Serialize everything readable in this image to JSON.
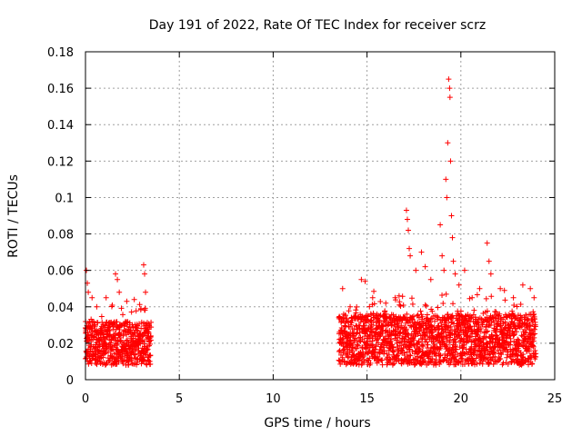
{
  "chart_data": {
    "type": "scatter",
    "title": "Day 191 of 2022, Rate Of TEC Index for receiver scrz",
    "xlabel": "GPS time / hours",
    "ylabel": "ROTI / TECUs",
    "xlim": [
      0,
      25
    ],
    "ylim": [
      0,
      0.18
    ],
    "xticks": [
      0,
      5,
      10,
      15,
      20,
      25
    ],
    "xtick_labels": [
      "0",
      "5",
      "10",
      "15",
      "20",
      "25"
    ],
    "yticks": [
      0,
      0.02,
      0.04,
      0.06,
      0.08,
      0.1,
      0.12,
      0.14,
      0.16,
      0.18
    ],
    "ytick_labels": [
      "0",
      "0.02",
      "0.04",
      "0.06",
      "0.08",
      "0.1",
      "0.12",
      "0.14",
      "0.16",
      "0.18"
    ],
    "grid": true,
    "marker": "+",
    "color": "#ff0000",
    "series": [
      {
        "name": "ROTI",
        "segments": [
          {
            "x_start": 0.0,
            "x_end": 3.5,
            "baseline_range": [
              0.008,
              0.032
            ]
          },
          {
            "x_start": 13.5,
            "x_end": 24.0,
            "baseline_range": [
              0.008,
              0.036
            ]
          }
        ],
        "points": [
          [
            0.05,
            0.06
          ],
          [
            0.1,
            0.053
          ],
          [
            0.15,
            0.048
          ],
          [
            0.35,
            0.045
          ],
          [
            0.6,
            0.04
          ],
          [
            1.1,
            0.045
          ],
          [
            1.6,
            0.058
          ],
          [
            1.7,
            0.055
          ],
          [
            1.8,
            0.048
          ],
          [
            2.2,
            0.043
          ],
          [
            2.6,
            0.044
          ],
          [
            3.1,
            0.063
          ],
          [
            3.15,
            0.058
          ],
          [
            3.2,
            0.048
          ],
          [
            13.7,
            0.05
          ],
          [
            14.1,
            0.04
          ],
          [
            14.7,
            0.055
          ],
          [
            14.9,
            0.054
          ],
          [
            15.3,
            0.045
          ],
          [
            16.0,
            0.042
          ],
          [
            16.5,
            0.045
          ],
          [
            17.1,
            0.093
          ],
          [
            17.15,
            0.088
          ],
          [
            17.2,
            0.082
          ],
          [
            17.25,
            0.072
          ],
          [
            17.3,
            0.068
          ],
          [
            17.6,
            0.06
          ],
          [
            17.9,
            0.07
          ],
          [
            18.1,
            0.062
          ],
          [
            18.4,
            0.055
          ],
          [
            18.9,
            0.085
          ],
          [
            19.0,
            0.068
          ],
          [
            19.1,
            0.06
          ],
          [
            19.2,
            0.11
          ],
          [
            19.25,
            0.1
          ],
          [
            19.3,
            0.13
          ],
          [
            19.35,
            0.165
          ],
          [
            19.4,
            0.16
          ],
          [
            19.42,
            0.155
          ],
          [
            19.45,
            0.12
          ],
          [
            19.5,
            0.09
          ],
          [
            19.55,
            0.078
          ],
          [
            19.6,
            0.065
          ],
          [
            19.7,
            0.058
          ],
          [
            19.9,
            0.052
          ],
          [
            20.2,
            0.06
          ],
          [
            20.6,
            0.045
          ],
          [
            21.0,
            0.05
          ],
          [
            21.4,
            0.075
          ],
          [
            21.5,
            0.065
          ],
          [
            21.6,
            0.058
          ],
          [
            22.1,
            0.05
          ],
          [
            22.8,
            0.045
          ],
          [
            23.3,
            0.052
          ],
          [
            23.7,
            0.05
          ],
          [
            23.9,
            0.045
          ]
        ]
      }
    ]
  }
}
